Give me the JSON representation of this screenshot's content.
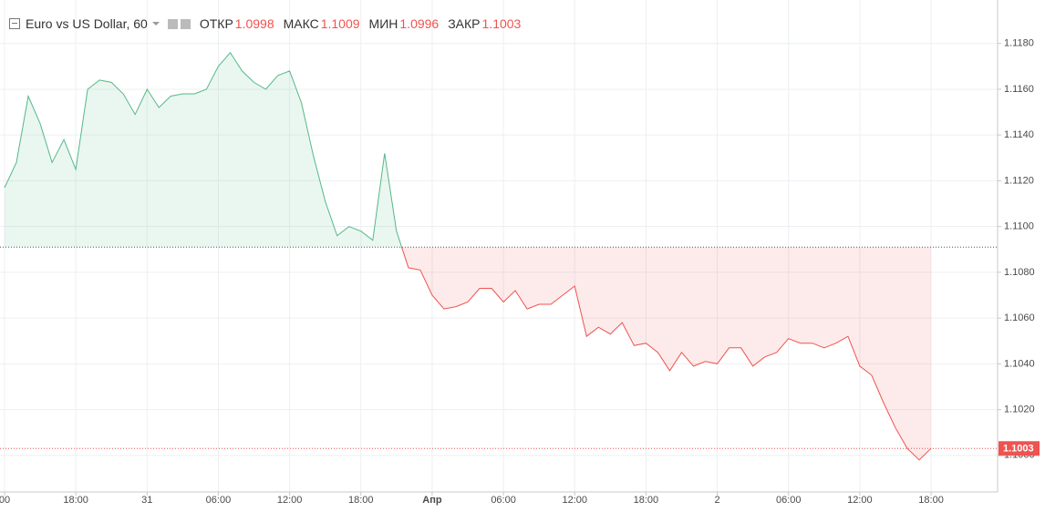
{
  "header": {
    "title": "Euro vs US Dollar, 60",
    "items": [
      {
        "label": "ОТКР",
        "value": "1.0998"
      },
      {
        "label": "МАКС",
        "value": "1.1009"
      },
      {
        "label": "МИН",
        "value": "1.0996"
      },
      {
        "label": "ЗАКР",
        "value": "1.1003"
      }
    ]
  },
  "chart_data": {
    "type": "baseline",
    "x": [
      0,
      1,
      2,
      3,
      4,
      5,
      6,
      7,
      8,
      9,
      10,
      11,
      12,
      13,
      14,
      15,
      16,
      17,
      18,
      19,
      20,
      21,
      22,
      23,
      24,
      25,
      26,
      27,
      28,
      29,
      30,
      31,
      32,
      33,
      34,
      35,
      36,
      37,
      38,
      39,
      40,
      41,
      42,
      43,
      44,
      45,
      46,
      47,
      48,
      49,
      50,
      51,
      52,
      53,
      54,
      55,
      56,
      57,
      58,
      59,
      60,
      61,
      62,
      63,
      64,
      65,
      66,
      67,
      68,
      69,
      70,
      71,
      72,
      73,
      74,
      75,
      76,
      77,
      78
    ],
    "values": [
      1.1117,
      1.1128,
      1.1157,
      1.1145,
      1.1128,
      1.1138,
      1.1125,
      1.116,
      1.1164,
      1.1163,
      1.1158,
      1.1149,
      1.116,
      1.1152,
      1.1157,
      1.1158,
      1.1158,
      1.116,
      1.117,
      1.1176,
      1.1168,
      1.1163,
      1.116,
      1.1166,
      1.1168,
      1.1154,
      1.1131,
      1.1111,
      1.1096,
      1.11,
      1.1098,
      1.1094,
      1.1132,
      1.1098,
      1.1082,
      1.1081,
      1.107,
      1.1064,
      1.1065,
      1.1067,
      1.1073,
      1.1073,
      1.1067,
      1.1072,
      1.1064,
      1.1066,
      1.1066,
      1.107,
      1.1074,
      1.1052,
      1.1056,
      1.1053,
      1.1058,
      1.1048,
      1.1049,
      1.1045,
      1.1037,
      1.1045,
      1.1039,
      1.1041,
      1.104,
      1.1047,
      1.1047,
      1.1039,
      1.1043,
      1.1045,
      1.1051,
      1.1049,
      1.1049,
      1.1047,
      1.1049,
      1.1052,
      1.1039,
      1.1035,
      1.1023,
      1.1012,
      1.1003,
      1.0998,
      1.1003
    ],
    "baseline": 1.1091,
    "up_color": "#53b987",
    "down_color": "#ef5350",
    "last_value": 1.1003,
    "last_value_label": "1.1003",
    "xlim": [
      -0.38,
      83.6
    ],
    "xticks": [
      {
        "value": 0,
        "label": "00"
      },
      {
        "value": 6,
        "label": "18:00"
      },
      {
        "value": 12,
        "label": "31"
      },
      {
        "value": 18,
        "label": "06:00"
      },
      {
        "value": 24,
        "label": "12:00"
      },
      {
        "value": 30,
        "label": "18:00"
      },
      {
        "value": 36,
        "label": "Апр"
      },
      {
        "value": 42,
        "label": "06:00"
      },
      {
        "value": 48,
        "label": "12:00"
      },
      {
        "value": 54,
        "label": "18:00"
      },
      {
        "value": 60,
        "label": "2"
      },
      {
        "value": 66,
        "label": "06:00"
      },
      {
        "value": 72,
        "label": "12:00"
      },
      {
        "value": 78,
        "label": "18:00"
      }
    ],
    "ylim": [
      1.0984,
      1.1199
    ],
    "yticks": [
      {
        "value": 1.1,
        "label": "1.1000"
      },
      {
        "value": 1.102,
        "label": "1.1020"
      },
      {
        "value": 1.104,
        "label": "1.1040"
      },
      {
        "value": 1.106,
        "label": "1.1060"
      },
      {
        "value": 1.108,
        "label": "1.1080"
      },
      {
        "value": 1.11,
        "label": "1.1100"
      },
      {
        "value": 1.112,
        "label": "1.1120"
      },
      {
        "value": 1.114,
        "label": "1.1140"
      },
      {
        "value": 1.116,
        "label": "1.1160"
      },
      {
        "value": 1.118,
        "label": "1.1180"
      }
    ],
    "grid": true
  }
}
